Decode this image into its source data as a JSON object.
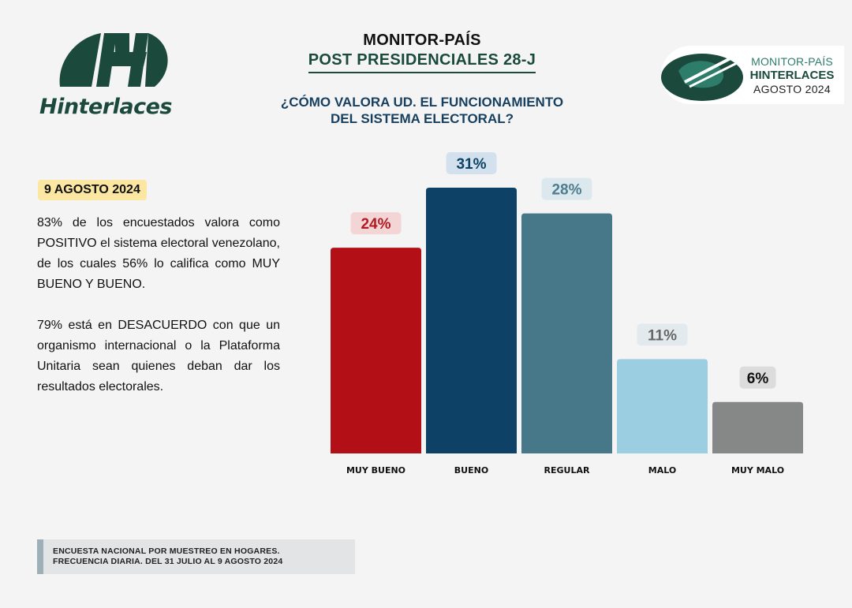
{
  "branding": {
    "left_logo_text": "Hinterlaces",
    "right_logo": {
      "line1": "MONITOR-PAÍS",
      "line2": "HINTERLACES",
      "line3": "AGOSTO 2024"
    }
  },
  "header": {
    "line1": "MONITOR-PAÍS",
    "line2": "POST PRESIDENCIALES 28-J",
    "question_line1": "¿CÓMO VALORA UD. EL FUNCIONAMIENTO",
    "question_line2": "DEL SISTEMA ELECTORAL?"
  },
  "date_badge": "9 AGOSTO 2024",
  "text": {
    "paragraph1": "83% de los encuestados valora como POSITIVO el sistema electoral venezolano, de los cuales 56% lo califica como MUY BUENO Y BUENO.",
    "paragraph2": "79% está en DESACUERDO con que un organismo internacional o la Plataforma Unitaria sean quienes deban dar los resultados electorales."
  },
  "footer": {
    "line1": "ENCUESTA NACIONAL POR MUESTREO EN HOGARES.",
    "line2": "FRECUENCIA DIARIA. DEL 31 JULIO AL 9 AGOSTO 2024"
  },
  "chart_data": {
    "type": "bar",
    "categories": [
      "MUY BUENO",
      "BUENO",
      "REGULAR",
      "MALO",
      "MUY MALO"
    ],
    "values": [
      24,
      31,
      28,
      11,
      6
    ],
    "labels": [
      "24%",
      "31%",
      "28%",
      "11%",
      "6%"
    ],
    "unit": "%",
    "ylim": [
      0,
      31
    ],
    "grid": false,
    "colors": [
      "#b30f16",
      "#0d4266",
      "#46788a",
      "#9ccee1",
      "#868888"
    ],
    "label_text_colors": [
      "#b01a22",
      "#0d4266",
      "#4e7e8f",
      "#666666",
      "#111111"
    ],
    "label_bg_colors": [
      "#f4d5d6",
      "#d3e1ee",
      "#dbe8ee",
      "#e3eaee",
      "#dcdcdc"
    ]
  }
}
